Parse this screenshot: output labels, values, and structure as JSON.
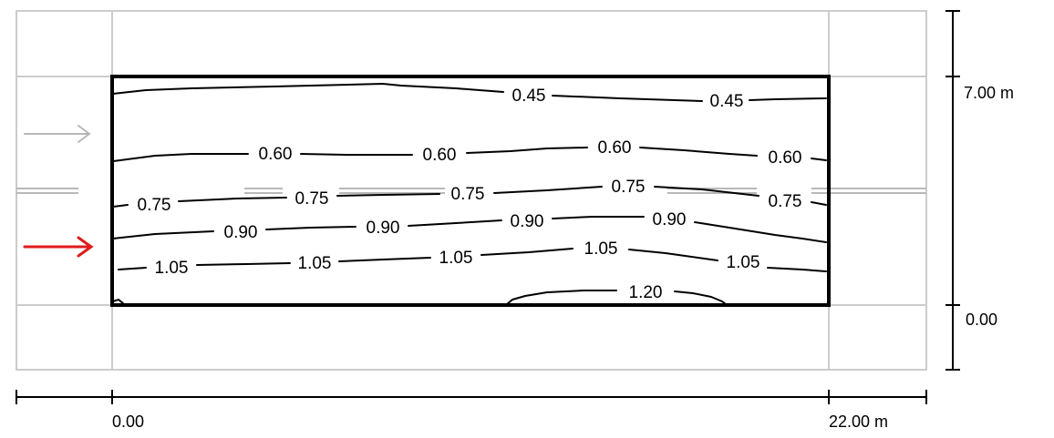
{
  "dimensions": {
    "width_start": "0.00",
    "width_end": "22.00 m",
    "height_start": "0.00",
    "height_end": "7.00 m"
  },
  "indicator_arrows": [
    {
      "name": "reference-arrow-icon",
      "color": "#b8b8b8"
    },
    {
      "name": "active-arrow-icon",
      "color": "#e01b1b"
    }
  ],
  "colors": {
    "grid": "#cccccc",
    "frame": "#000000",
    "contour": "#000000",
    "lane_marking": "#b8b8b8"
  },
  "contours": [
    {
      "value": "0.45",
      "labels": [
        "0.45",
        "0.45"
      ]
    },
    {
      "value": "0.60",
      "labels": [
        "0.60",
        "0.60",
        "0.60",
        "0.60"
      ]
    },
    {
      "value": "0.75",
      "labels": [
        "0.75",
        "0.75",
        "0.75",
        "0.75",
        "0.75"
      ]
    },
    {
      "value": "0.90",
      "labels": [
        "0.90",
        "0.90",
        "0.90",
        "0.90"
      ]
    },
    {
      "value": "1.05",
      "labels": [
        "1.05",
        "1.05",
        "1.05",
        "1.05",
        "1.05"
      ]
    },
    {
      "value": "1.20",
      "labels": [
        "1.20"
      ]
    }
  ]
}
